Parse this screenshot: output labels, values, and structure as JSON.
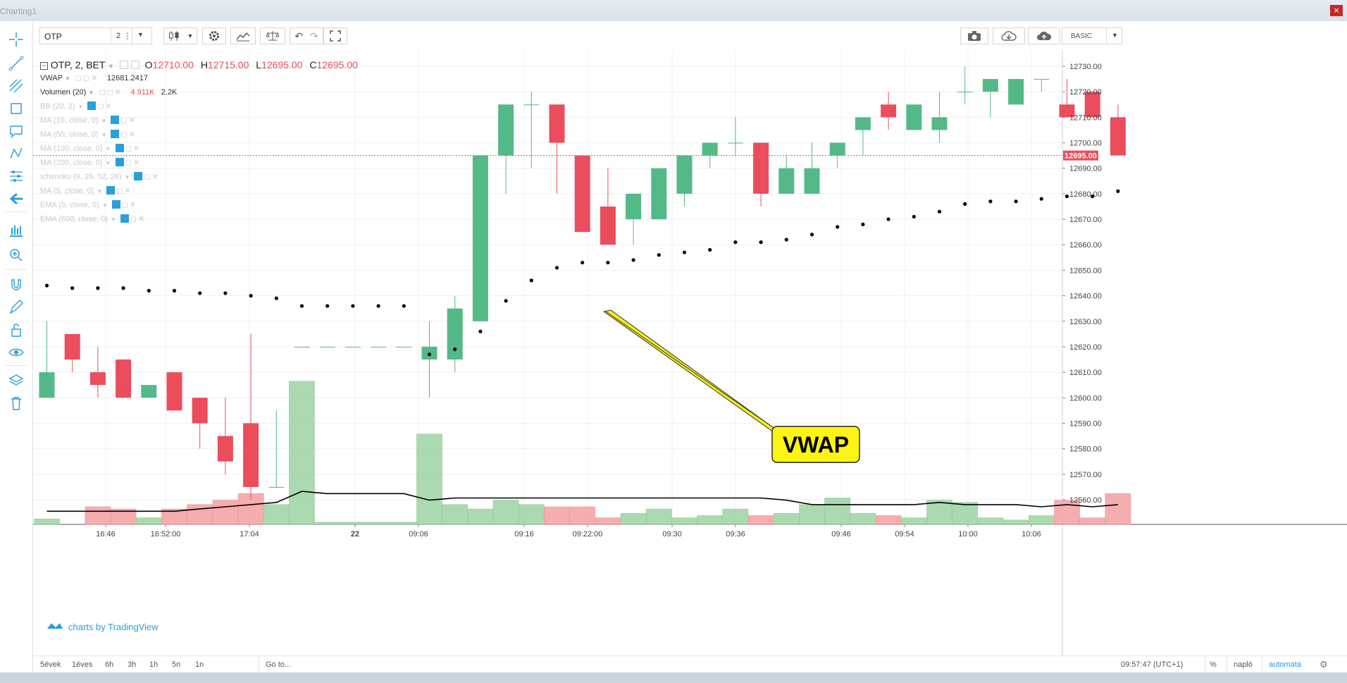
{
  "window": {
    "title": "Charting1",
    "close": "×"
  },
  "toolbar": {
    "symbol": "OTP",
    "interval": "2",
    "mode": "BASIC"
  },
  "legend": {
    "main": {
      "title": "OTP, 2, BET",
      "o_label": "O",
      "o": "12710.00",
      "h_label": "H",
      "h": "12715.00",
      "l_label": "L",
      "l": "12695.00",
      "c_label": "C",
      "c": "12695.00"
    },
    "vwap": {
      "label": "VWAP",
      "value": "12681.2417"
    },
    "volume": {
      "label": "Volumen (20)",
      "v1": "4.911K",
      "v2": "2.2K"
    },
    "hidden": [
      "BB (20, 2)",
      "MA (10, close, 0)",
      "MA (50, close, 0)",
      "MA (100, close, 0)",
      "MA (200, close, 0)",
      "Ichimoku (9, 26, 52, 26)",
      "MA (5, close, 0)",
      "EMA (5, close, 0)",
      "EMA (600, close, 0)"
    ]
  },
  "annotation": {
    "text": "VWAP"
  },
  "watermark": "charts by TradingView",
  "bottom": {
    "ranges": [
      "5évek",
      "1éves",
      "6h",
      "3h",
      "1h",
      "5n",
      "1n"
    ],
    "goto": "Go to...",
    "time": "09:57:47 (UTC+1)",
    "pct": "%",
    "log": "napló",
    "auto": "automata"
  },
  "colors": {
    "up": "#53b987",
    "down": "#eb4d5c",
    "up_vol": "#a3d6a8",
    "down_vol": "#f5a5a8",
    "vwap": "#000000",
    "last_price_bg": "#eb4d5c",
    "accent": "#2196f3"
  },
  "chart_data": {
    "type": "candlestick",
    "price_axis": {
      "ticks": [
        12560,
        12570,
        12580,
        12590,
        12600,
        12610,
        12620,
        12630,
        12640,
        12650,
        12660,
        12670,
        12680,
        12690,
        12700,
        12710,
        12720,
        12730
      ],
      "last_price": "12695.00",
      "range": [
        12550,
        12735
      ]
    },
    "time_axis": {
      "labels": [
        "16:46",
        "16:52:00",
        "17:04",
        "22",
        "09:06",
        "09:16",
        "09:22:00",
        "09:30",
        "09:36",
        "09:46",
        "09:54",
        "10:00",
        "10:06"
      ]
    },
    "candles": [
      {
        "o": 12600,
        "h": 12630,
        "l": 12600,
        "c": 12610
      },
      {
        "o": 12625,
        "h": 12625,
        "l": 12610,
        "c": 12615
      },
      {
        "o": 12610,
        "h": 12620,
        "l": 12600,
        "c": 12605
      },
      {
        "o": 12615,
        "h": 12615,
        "l": 12600,
        "c": 12600
      },
      {
        "o": 12600,
        "h": 12605,
        "l": 12600,
        "c": 12605
      },
      {
        "o": 12610,
        "h": 12610,
        "l": 12595,
        "c": 12595
      },
      {
        "o": 12600,
        "h": 12600,
        "l": 12580,
        "c": 12590
      },
      {
        "o": 12585,
        "h": 12600,
        "l": 12570,
        "c": 12575
      },
      {
        "o": 12590,
        "h": 12625,
        "l": 12560,
        "c": 12565
      },
      {
        "o": 12565,
        "h": 12595,
        "l": 12565,
        "c": 12565
      },
      {
        "o": 12620,
        "h": 12620,
        "l": 12620,
        "c": 12620
      },
      {
        "o": 12620,
        "h": 12620,
        "l": 12620,
        "c": 12620
      },
      {
        "o": 12620,
        "h": 12620,
        "l": 12620,
        "c": 12620
      },
      {
        "o": 12620,
        "h": 12620,
        "l": 12620,
        "c": 12620
      },
      {
        "o": 12620,
        "h": 12620,
        "l": 12620,
        "c": 12620
      },
      {
        "o": 12615,
        "h": 12630,
        "l": 12600,
        "c": 12620
      },
      {
        "o": 12615,
        "h": 12640,
        "l": 12610,
        "c": 12635
      },
      {
        "o": 12630,
        "h": 12695,
        "l": 12630,
        "c": 12695
      },
      {
        "o": 12695,
        "h": 12715,
        "l": 12680,
        "c": 12715
      },
      {
        "o": 12715,
        "h": 12720,
        "l": 12690,
        "c": 12715
      },
      {
        "o": 12715,
        "h": 12715,
        "l": 12680,
        "c": 12700
      },
      {
        "o": 12695,
        "h": 12695,
        "l": 12665,
        "c": 12665
      },
      {
        "o": 12675,
        "h": 12690,
        "l": 12660,
        "c": 12660
      },
      {
        "o": 12670,
        "h": 12680,
        "l": 12660,
        "c": 12680
      },
      {
        "o": 12670,
        "h": 12690,
        "l": 12670,
        "c": 12690
      },
      {
        "o": 12680,
        "h": 12695,
        "l": 12675,
        "c": 12695
      },
      {
        "o": 12695,
        "h": 12700,
        "l": 12690,
        "c": 12700
      },
      {
        "o": 12700,
        "h": 12710,
        "l": 12695,
        "c": 12700
      },
      {
        "o": 12700,
        "h": 12700,
        "l": 12675,
        "c": 12680
      },
      {
        "o": 12680,
        "h": 12695,
        "l": 12680,
        "c": 12690
      },
      {
        "o": 12680,
        "h": 12700,
        "l": 12680,
        "c": 12690
      },
      {
        "o": 12695,
        "h": 12700,
        "l": 12690,
        "c": 12700
      },
      {
        "o": 12705,
        "h": 12710,
        "l": 12695,
        "c": 12710
      },
      {
        "o": 12715,
        "h": 12720,
        "l": 12705,
        "c": 12710
      },
      {
        "o": 12705,
        "h": 12715,
        "l": 12705,
        "c": 12715
      },
      {
        "o": 12705,
        "h": 12720,
        "l": 12700,
        "c": 12710
      },
      {
        "o": 12720,
        "h": 12730,
        "l": 12715,
        "c": 12720
      },
      {
        "o": 12720,
        "h": 12725,
        "l": 12710,
        "c": 12725
      },
      {
        "o": 12715,
        "h": 12725,
        "l": 12715,
        "c": 12725
      },
      {
        "o": 12725,
        "h": 12725,
        "l": 12720,
        "c": 12725
      },
      {
        "o": 12715,
        "h": 12725,
        "l": 12710,
        "c": 12710
      },
      {
        "o": 12720,
        "h": 12720,
        "l": 12710,
        "c": 12710
      },
      {
        "o": 12710,
        "h": 12715,
        "l": 12695,
        "c": 12695
      }
    ],
    "vwap": [
      12644,
      12643,
      12643,
      12643,
      12642,
      12642,
      12641,
      12641,
      12640,
      12639,
      12636,
      12636,
      12636,
      12636,
      12636,
      12617,
      12619,
      12626,
      12638,
      12646,
      12651,
      12653,
      12653,
      12654,
      12656,
      12657,
      12658,
      12661,
      12661,
      12662,
      12664,
      12667,
      12668,
      12670,
      12671,
      12673,
      12676,
      12677,
      12677,
      12678,
      12679,
      12679,
      12681
    ],
    "volume": {
      "values": [
        0.25,
        0.0,
        0.8,
        0.7,
        0.3,
        0.7,
        0.9,
        1.1,
        1.4,
        0.9,
        6.5,
        0.1,
        0.1,
        0.1,
        0.1,
        4.1,
        0.9,
        0.7,
        1.1,
        0.9,
        0.8,
        0.8,
        0.3,
        0.5,
        0.7,
        0.3,
        0.4,
        0.7,
        0.4,
        0.5,
        0.9,
        1.2,
        0.5,
        0.4,
        0.3,
        1.1,
        1.0,
        0.3,
        0.2,
        0.4,
        1.1,
        0.3,
        1.4
      ],
      "ma": [
        0.6,
        0.6,
        0.6,
        0.6,
        0.6,
        0.6,
        0.7,
        0.8,
        0.9,
        1.0,
        1.5,
        1.4,
        1.4,
        1.4,
        1.4,
        1.1,
        1.2,
        1.2,
        1.2,
        1.2,
        1.2,
        1.2,
        1.2,
        1.2,
        1.2,
        1.2,
        1.2,
        1.2,
        1.2,
        1.1,
        0.9,
        0.9,
        0.9,
        0.9,
        0.9,
        1.0,
        0.9,
        0.9,
        0.9,
        0.8,
        0.9,
        0.8,
        0.9
      ],
      "max": 8
    }
  }
}
